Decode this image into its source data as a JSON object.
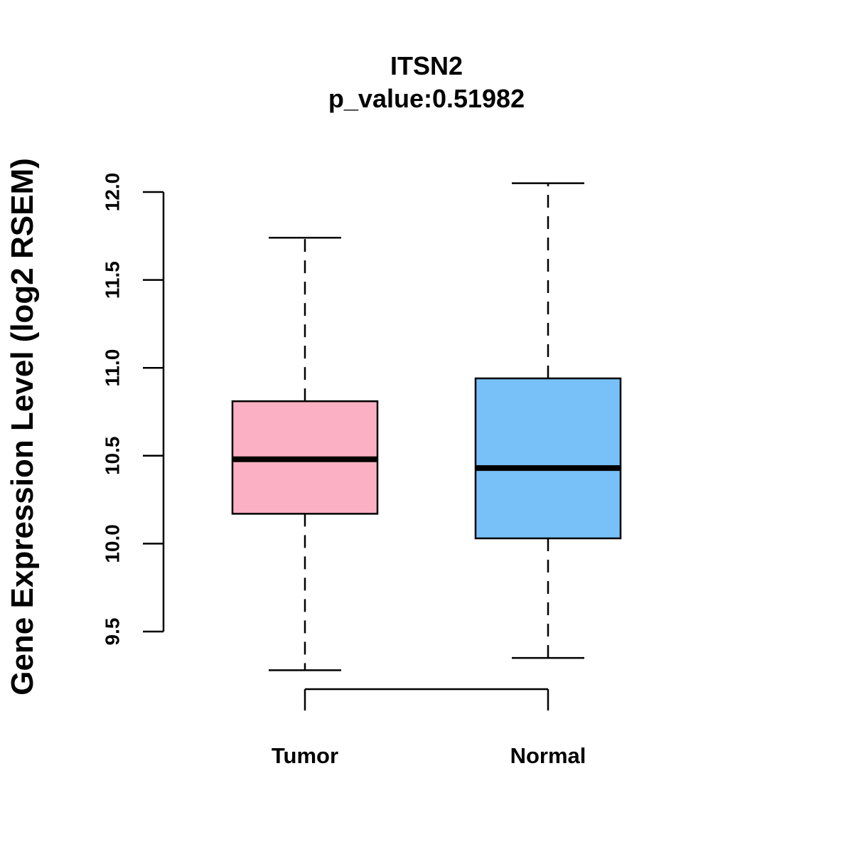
{
  "chart_data": {
    "type": "boxplot",
    "title": "ITSN2",
    "subtitle": "p_value:0.51982",
    "xlabel": "",
    "ylabel": "Gene Expression Level (log2 RSEM)",
    "ylim": [
      9.5,
      12.0
    ],
    "yticks": [
      "9.5",
      "10.0",
      "10.5",
      "11.0",
      "11.5",
      "12.0"
    ],
    "grid": false,
    "categories": [
      "Tumor",
      "Normal"
    ],
    "boxes": [
      {
        "name": "Tumor",
        "whisker_low": 9.28,
        "q1": 10.17,
        "median": 10.48,
        "q3": 10.81,
        "whisker_high": 11.74,
        "color": "#FBB1C3"
      },
      {
        "name": "Normal",
        "whisker_low": 9.35,
        "q1": 10.03,
        "median": 10.43,
        "q3": 10.94,
        "whisker_high": 12.05,
        "color": "#77C1F8"
      }
    ],
    "comparison_bracket": [
      "Tumor",
      "Normal"
    ]
  }
}
